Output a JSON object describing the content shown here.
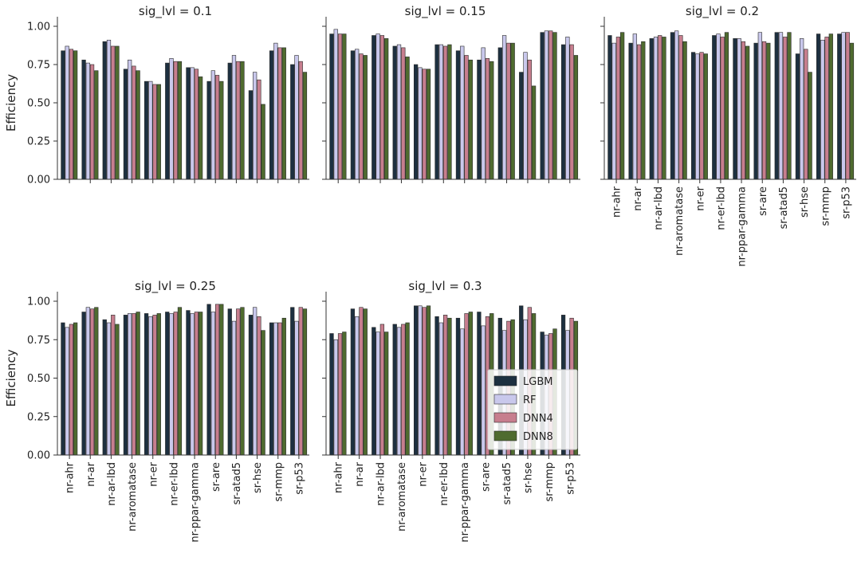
{
  "chart_data": {
    "type": "bar",
    "ylabel": "Efficiency",
    "ylim": [
      0,
      1.0
    ],
    "yticks": [
      "0.00",
      "0.25",
      "0.50",
      "0.75",
      "1.00"
    ],
    "categories": [
      "nr-ahr",
      "nr-ar",
      "nr-ar-lbd",
      "nr-aromatase",
      "nr-er",
      "nr-er-lbd",
      "nr-ppar-gamma",
      "sr-are",
      "sr-atad5",
      "sr-hse",
      "sr-mmp",
      "sr-p53"
    ],
    "colors": {
      "LGBM": "#1d3040",
      "RF": "#c9c8ec",
      "DNN4": "#c77e8e",
      "DNN8": "#4f6b2f"
    },
    "legend": {
      "entries": [
        "LGBM",
        "RF",
        "DNN4",
        "DNN8"
      ],
      "placement": "lower-right of sig_lvl = 0.3 panel"
    },
    "panels": [
      {
        "title": "sig_lvl = 0.1",
        "series": [
          {
            "name": "LGBM",
            "values": [
              0.84,
              0.78,
              0.9,
              0.72,
              0.64,
              0.76,
              0.73,
              0.64,
              0.76,
              0.58,
              0.84,
              0.75
            ]
          },
          {
            "name": "RF",
            "values": [
              0.87,
              0.76,
              0.91,
              0.78,
              0.64,
              0.79,
              0.73,
              0.71,
              0.81,
              0.7,
              0.89,
              0.81
            ]
          },
          {
            "name": "DNN4",
            "values": [
              0.85,
              0.75,
              0.87,
              0.74,
              0.62,
              0.77,
              0.72,
              0.68,
              0.77,
              0.65,
              0.86,
              0.77
            ]
          },
          {
            "name": "DNN8",
            "values": [
              0.84,
              0.71,
              0.87,
              0.71,
              0.62,
              0.77,
              0.67,
              0.64,
              0.77,
              0.49,
              0.86,
              0.7
            ]
          }
        ]
      },
      {
        "title": "sig_lvl = 0.15",
        "series": [
          {
            "name": "LGBM",
            "values": [
              0.95,
              0.84,
              0.94,
              0.87,
              0.75,
              0.88,
              0.84,
              0.78,
              0.86,
              0.7,
              0.96,
              0.88
            ]
          },
          {
            "name": "RF",
            "values": [
              0.98,
              0.85,
              0.95,
              0.88,
              0.73,
              0.88,
              0.87,
              0.86,
              0.94,
              0.83,
              0.97,
              0.93
            ]
          },
          {
            "name": "DNN4",
            "values": [
              0.95,
              0.82,
              0.94,
              0.86,
              0.72,
              0.87,
              0.81,
              0.79,
              0.89,
              0.78,
              0.97,
              0.88
            ]
          },
          {
            "name": "DNN8",
            "values": [
              0.95,
              0.81,
              0.92,
              0.8,
              0.72,
              0.88,
              0.78,
              0.77,
              0.89,
              0.61,
              0.96,
              0.81
            ]
          }
        ]
      },
      {
        "title": "sig_lvl = 0.2",
        "series": [
          {
            "name": "LGBM",
            "values": [
              0.94,
              0.89,
              0.92,
              0.96,
              0.83,
              0.94,
              0.92,
              0.89,
              0.96,
              0.82,
              0.95,
              0.95
            ]
          },
          {
            "name": "RF",
            "values": [
              0.89,
              0.95,
              0.93,
              0.97,
              0.82,
              0.95,
              0.92,
              0.96,
              0.96,
              0.92,
              0.91,
              0.96
            ]
          },
          {
            "name": "DNN4",
            "values": [
              0.93,
              0.88,
              0.94,
              0.94,
              0.83,
              0.93,
              0.9,
              0.9,
              0.93,
              0.85,
              0.93,
              0.96
            ]
          },
          {
            "name": "DNN8",
            "values": [
              0.96,
              0.9,
              0.93,
              0.9,
              0.82,
              0.96,
              0.87,
              0.89,
              0.96,
              0.7,
              0.95,
              0.89
            ]
          }
        ]
      },
      {
        "title": "sig_lvl = 0.25",
        "series": [
          {
            "name": "LGBM",
            "values": [
              0.86,
              0.93,
              0.88,
              0.91,
              0.92,
              0.93,
              0.94,
              0.98,
              0.95,
              0.91,
              0.86,
              0.96
            ]
          },
          {
            "name": "RF",
            "values": [
              0.83,
              0.96,
              0.86,
              0.92,
              0.9,
              0.92,
              0.92,
              0.93,
              0.87,
              0.96,
              0.86,
              0.87
            ]
          },
          {
            "name": "DNN4",
            "values": [
              0.85,
              0.95,
              0.91,
              0.92,
              0.91,
              0.93,
              0.93,
              0.98,
              0.95,
              0.9,
              0.86,
              0.96
            ]
          },
          {
            "name": "DNN8",
            "values": [
              0.86,
              0.96,
              0.85,
              0.93,
              0.92,
              0.96,
              0.93,
              0.98,
              0.96,
              0.81,
              0.89,
              0.95
            ]
          }
        ]
      },
      {
        "title": "sig_lvl = 0.3",
        "series": [
          {
            "name": "LGBM",
            "values": [
              0.79,
              0.95,
              0.83,
              0.85,
              0.97,
              0.9,
              0.89,
              0.93,
              0.89,
              0.97,
              0.8,
              0.91
            ]
          },
          {
            "name": "RF",
            "values": [
              0.75,
              0.9,
              0.8,
              0.83,
              0.97,
              0.86,
              0.82,
              0.84,
              0.81,
              0.88,
              0.78,
              0.81
            ]
          },
          {
            "name": "DNN4",
            "values": [
              0.79,
              0.96,
              0.85,
              0.85,
              0.96,
              0.91,
              0.92,
              0.9,
              0.87,
              0.96,
              0.79,
              0.89
            ]
          },
          {
            "name": "DNN8",
            "values": [
              0.8,
              0.95,
              0.8,
              0.86,
              0.97,
              0.89,
              0.93,
              0.92,
              0.88,
              0.92,
              0.82,
              0.87
            ]
          }
        ]
      }
    ]
  }
}
